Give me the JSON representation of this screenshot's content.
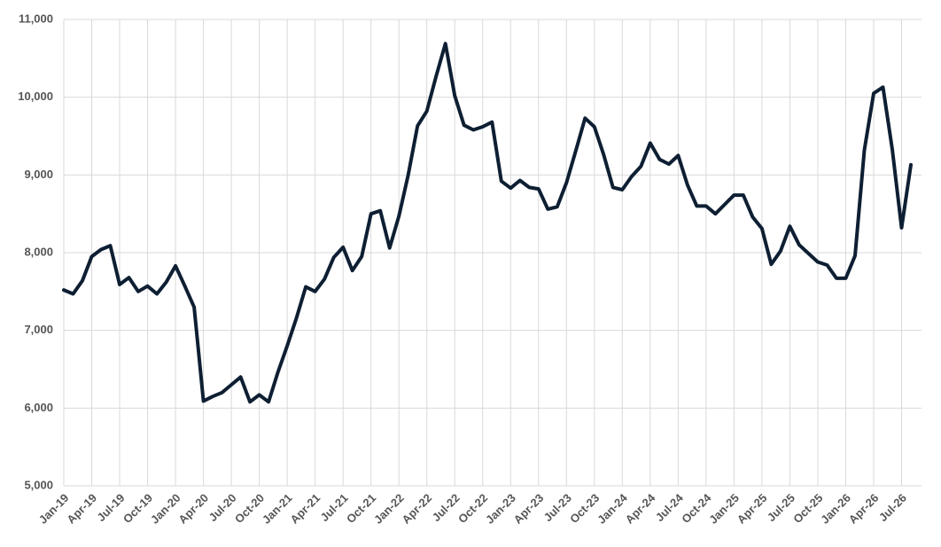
{
  "chart_data": {
    "type": "line",
    "categories": [
      "Jan-19",
      null,
      null,
      "Apr-19",
      null,
      null,
      "Jul-19",
      null,
      null,
      "Oct-19",
      null,
      null,
      "Jan-20",
      null,
      null,
      "Apr-20",
      null,
      null,
      "Jul-20",
      null,
      null,
      "Oct-20",
      null,
      null,
      "Jan-21",
      null,
      null,
      "Apr-21",
      null,
      null,
      "Jul-21",
      null,
      null,
      "Oct-21",
      null,
      null,
      "Jan-22",
      null,
      null,
      "Apr-22",
      null,
      null,
      "Jul-22",
      null,
      null,
      "Oct-22",
      null,
      null,
      "Jan-23",
      null,
      null,
      "Apr-23",
      null,
      null,
      "Jul-23",
      null,
      null,
      "Oct-23",
      null,
      null,
      "Jan-24",
      null,
      null,
      "Apr-24",
      null,
      null,
      "Jul-24",
      null,
      null,
      "Oct-24",
      null,
      null,
      "Jan-25",
      null,
      null,
      "Apr-25",
      null,
      null,
      "Jul-25",
      null,
      null,
      "Oct-25",
      null,
      null,
      "Jan-26",
      null,
      null,
      "Apr-26",
      null,
      null,
      "Jul-26",
      null
    ],
    "series": [
      {
        "color": "#0e1f33",
        "values": [
          7520,
          7470,
          7640,
          7950,
          8040,
          8090,
          7590,
          7680,
          7500,
          7570,
          7470,
          7620,
          7830,
          7570,
          7300,
          6090,
          6150,
          6200,
          6300,
          6400,
          6080,
          6170,
          6080,
          6460,
          6800,
          7160,
          7560,
          7500,
          7660,
          7940,
          8070,
          7770,
          7950,
          8500,
          8540,
          8060,
          8470,
          9000,
          9630,
          9820,
          10270,
          10690,
          10020,
          9640,
          9580,
          9620,
          9680,
          8920,
          8830,
          8930,
          8840,
          8820,
          8560,
          8590,
          8900,
          9310,
          9730,
          9620,
          9260,
          8840,
          8810,
          8980,
          9110,
          9410,
          9200,
          9140,
          9250,
          8870,
          8600,
          8600,
          8500,
          8620,
          8740,
          8740,
          8460,
          8310,
          7850,
          8020,
          8340,
          8100,
          7990,
          7880,
          7840,
          7670,
          7670,
          7960,
          9320,
          10050,
          10130,
          9330,
          8320,
          9130
        ]
      }
    ],
    "ylim": [
      5000,
      11000
    ],
    "yticks": [
      {
        "value": 5000,
        "label": "5,000"
      },
      {
        "value": 6000,
        "label": "6,000"
      },
      {
        "value": 7000,
        "label": "7,000"
      },
      {
        "value": 8000,
        "label": "8,000"
      },
      {
        "value": 9000,
        "label": "9,000"
      },
      {
        "value": 10000,
        "label": "10,000"
      },
      {
        "value": 11000,
        "label": "11,000"
      }
    ],
    "grid": true
  }
}
